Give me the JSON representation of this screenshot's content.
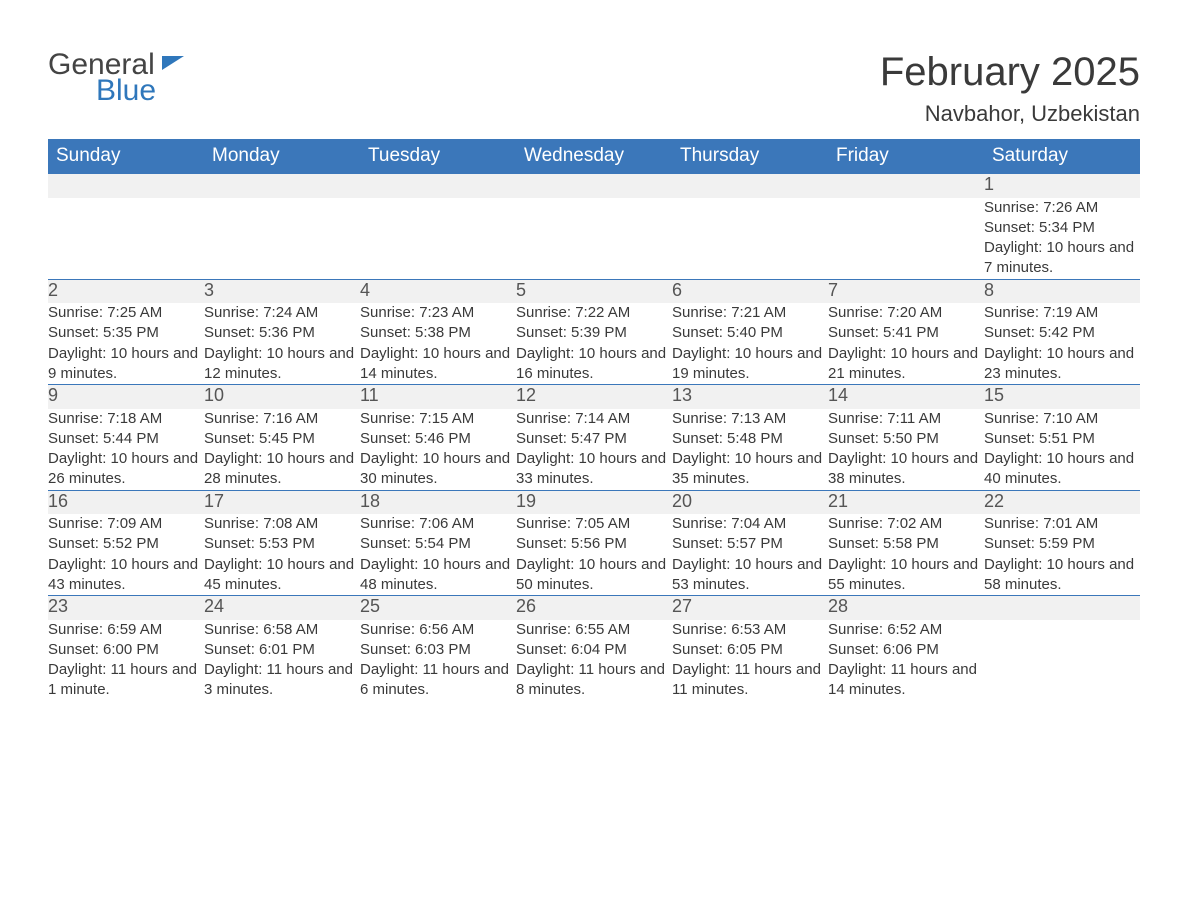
{
  "logo": {
    "text1": "General",
    "text2": "Blue"
  },
  "title": "February 2025",
  "location": "Navbahor, Uzbekistan",
  "colors": {
    "header_bg": "#3b77ba",
    "header_text": "#ffffff",
    "row_top_border": "#3b77ba",
    "daynum_bg": "#f1f1f1",
    "body_text": "#3a3a3a",
    "logo_blue": "#2f77bb",
    "page_bg": "#ffffff"
  },
  "fonts": {
    "month_title_size": 40,
    "location_size": 22,
    "weekday_size": 19,
    "daynum_size": 18,
    "body_size": 15
  },
  "weekdays": [
    "Sunday",
    "Monday",
    "Tuesday",
    "Wednesday",
    "Thursday",
    "Friday",
    "Saturday"
  ],
  "weeks": [
    [
      null,
      null,
      null,
      null,
      null,
      null,
      {
        "d": "1",
        "sunrise": "Sunrise: 7:26 AM",
        "sunset": "Sunset: 5:34 PM",
        "daylight": "Daylight: 10 hours and 7 minutes."
      }
    ],
    [
      {
        "d": "2",
        "sunrise": "Sunrise: 7:25 AM",
        "sunset": "Sunset: 5:35 PM",
        "daylight": "Daylight: 10 hours and 9 minutes."
      },
      {
        "d": "3",
        "sunrise": "Sunrise: 7:24 AM",
        "sunset": "Sunset: 5:36 PM",
        "daylight": "Daylight: 10 hours and 12 minutes."
      },
      {
        "d": "4",
        "sunrise": "Sunrise: 7:23 AM",
        "sunset": "Sunset: 5:38 PM",
        "daylight": "Daylight: 10 hours and 14 minutes."
      },
      {
        "d": "5",
        "sunrise": "Sunrise: 7:22 AM",
        "sunset": "Sunset: 5:39 PM",
        "daylight": "Daylight: 10 hours and 16 minutes."
      },
      {
        "d": "6",
        "sunrise": "Sunrise: 7:21 AM",
        "sunset": "Sunset: 5:40 PM",
        "daylight": "Daylight: 10 hours and 19 minutes."
      },
      {
        "d": "7",
        "sunrise": "Sunrise: 7:20 AM",
        "sunset": "Sunset: 5:41 PM",
        "daylight": "Daylight: 10 hours and 21 minutes."
      },
      {
        "d": "8",
        "sunrise": "Sunrise: 7:19 AM",
        "sunset": "Sunset: 5:42 PM",
        "daylight": "Daylight: 10 hours and 23 minutes."
      }
    ],
    [
      {
        "d": "9",
        "sunrise": "Sunrise: 7:18 AM",
        "sunset": "Sunset: 5:44 PM",
        "daylight": "Daylight: 10 hours and 26 minutes."
      },
      {
        "d": "10",
        "sunrise": "Sunrise: 7:16 AM",
        "sunset": "Sunset: 5:45 PM",
        "daylight": "Daylight: 10 hours and 28 minutes."
      },
      {
        "d": "11",
        "sunrise": "Sunrise: 7:15 AM",
        "sunset": "Sunset: 5:46 PM",
        "daylight": "Daylight: 10 hours and 30 minutes."
      },
      {
        "d": "12",
        "sunrise": "Sunrise: 7:14 AM",
        "sunset": "Sunset: 5:47 PM",
        "daylight": "Daylight: 10 hours and 33 minutes."
      },
      {
        "d": "13",
        "sunrise": "Sunrise: 7:13 AM",
        "sunset": "Sunset: 5:48 PM",
        "daylight": "Daylight: 10 hours and 35 minutes."
      },
      {
        "d": "14",
        "sunrise": "Sunrise: 7:11 AM",
        "sunset": "Sunset: 5:50 PM",
        "daylight": "Daylight: 10 hours and 38 minutes."
      },
      {
        "d": "15",
        "sunrise": "Sunrise: 7:10 AM",
        "sunset": "Sunset: 5:51 PM",
        "daylight": "Daylight: 10 hours and 40 minutes."
      }
    ],
    [
      {
        "d": "16",
        "sunrise": "Sunrise: 7:09 AM",
        "sunset": "Sunset: 5:52 PM",
        "daylight": "Daylight: 10 hours and 43 minutes."
      },
      {
        "d": "17",
        "sunrise": "Sunrise: 7:08 AM",
        "sunset": "Sunset: 5:53 PM",
        "daylight": "Daylight: 10 hours and 45 minutes."
      },
      {
        "d": "18",
        "sunrise": "Sunrise: 7:06 AM",
        "sunset": "Sunset: 5:54 PM",
        "daylight": "Daylight: 10 hours and 48 minutes."
      },
      {
        "d": "19",
        "sunrise": "Sunrise: 7:05 AM",
        "sunset": "Sunset: 5:56 PM",
        "daylight": "Daylight: 10 hours and 50 minutes."
      },
      {
        "d": "20",
        "sunrise": "Sunrise: 7:04 AM",
        "sunset": "Sunset: 5:57 PM",
        "daylight": "Daylight: 10 hours and 53 minutes."
      },
      {
        "d": "21",
        "sunrise": "Sunrise: 7:02 AM",
        "sunset": "Sunset: 5:58 PM",
        "daylight": "Daylight: 10 hours and 55 minutes."
      },
      {
        "d": "22",
        "sunrise": "Sunrise: 7:01 AM",
        "sunset": "Sunset: 5:59 PM",
        "daylight": "Daylight: 10 hours and 58 minutes."
      }
    ],
    [
      {
        "d": "23",
        "sunrise": "Sunrise: 6:59 AM",
        "sunset": "Sunset: 6:00 PM",
        "daylight": "Daylight: 11 hours and 1 minute."
      },
      {
        "d": "24",
        "sunrise": "Sunrise: 6:58 AM",
        "sunset": "Sunset: 6:01 PM",
        "daylight": "Daylight: 11 hours and 3 minutes."
      },
      {
        "d": "25",
        "sunrise": "Sunrise: 6:56 AM",
        "sunset": "Sunset: 6:03 PM",
        "daylight": "Daylight: 11 hours and 6 minutes."
      },
      {
        "d": "26",
        "sunrise": "Sunrise: 6:55 AM",
        "sunset": "Sunset: 6:04 PM",
        "daylight": "Daylight: 11 hours and 8 minutes."
      },
      {
        "d": "27",
        "sunrise": "Sunrise: 6:53 AM",
        "sunset": "Sunset: 6:05 PM",
        "daylight": "Daylight: 11 hours and 11 minutes."
      },
      {
        "d": "28",
        "sunrise": "Sunrise: 6:52 AM",
        "sunset": "Sunset: 6:06 PM",
        "daylight": "Daylight: 11 hours and 14 minutes."
      },
      null
    ]
  ]
}
